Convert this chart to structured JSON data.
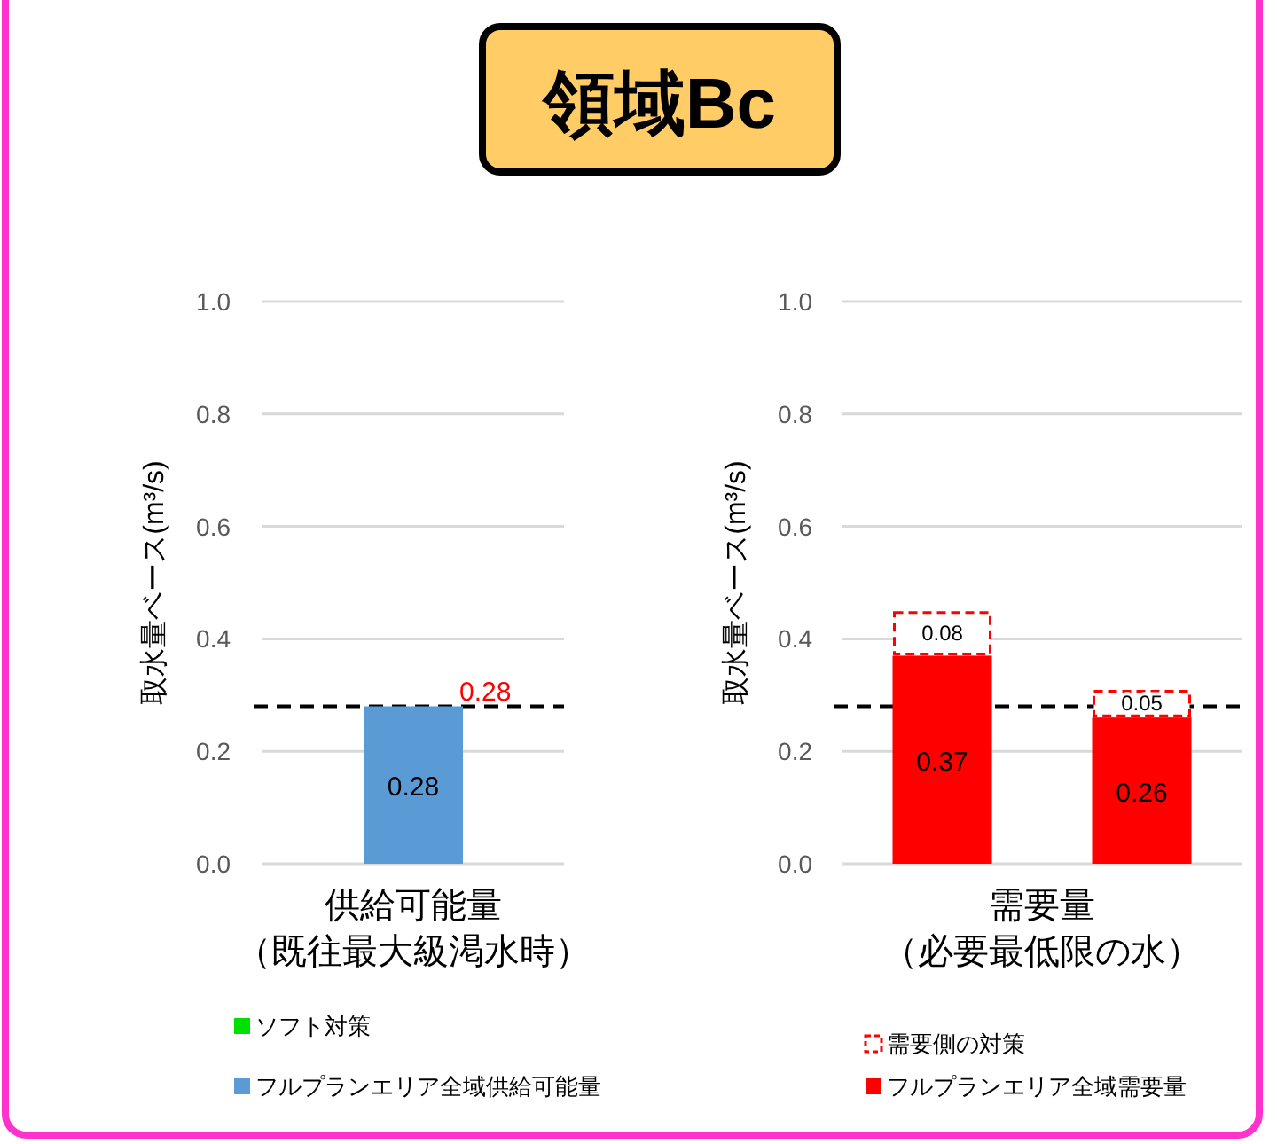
{
  "chart_data": [
    {
      "type": "bar",
      "title": "領域Bc",
      "categories": [
        null
      ],
      "xlabel": "供給可能量（既往最大級渇水時）",
      "ylabel": "取水量ベース(m³/s)",
      "stacked": true,
      "data_labels": true,
      "totals": [
        "0.28"
      ],
      "series": [
        {
          "name": "フルプランエリア全域供給可能量",
          "color": "#5b9bd5",
          "values": [
            0.28
          ]
        },
        {
          "name": "ソフト対策",
          "color": "#00e000",
          "values": [
            null
          ]
        }
      ],
      "ylim": [
        0,
        1
      ],
      "yticks": [
        {
          "value": 0,
          "label": "0.0"
        },
        {
          "value": 0.2,
          "label": "0.2"
        },
        {
          "value": 0.4,
          "label": "0.4"
        },
        {
          "value": 0.6,
          "label": "0.6"
        },
        {
          "value": 0.8,
          "label": "0.8"
        },
        {
          "value": 1,
          "label": "1.0"
        }
      ],
      "grid": "y",
      "legend": "bottom",
      "ref_lines": [
        {
          "axis": "y",
          "value": 0.28,
          "color": "#000000",
          "line_style": "dashed"
        }
      ]
    },
    {
      "type": "bar",
      "categories": [
        null,
        null
      ],
      "xlabel": "需要量（必要最低限の水）",
      "ylabel": "取水量ベース(m³/s)",
      "stacked": true,
      "data_labels": true,
      "series": [
        {
          "name": "フルプランエリア全域需要量",
          "color": "#ff0000",
          "values": [
            0.37,
            0.26
          ]
        },
        {
          "name": "需要側の対策",
          "color": "#ff0000",
          "line_style": "dashed",
          "values": [
            0.08,
            0.05
          ]
        }
      ],
      "ylim": [
        0,
        1
      ],
      "yticks": [
        {
          "value": 0,
          "label": "0.0"
        },
        {
          "value": 0.2,
          "label": "0.2"
        },
        {
          "value": 0.4,
          "label": "0.4"
        },
        {
          "value": 0.6,
          "label": "0.6"
        },
        {
          "value": 0.8,
          "label": "0.8"
        },
        {
          "value": 1,
          "label": "1.0"
        }
      ],
      "grid": "y",
      "legend": "bottom",
      "ref_lines": [
        {
          "axis": "y",
          "value": 0.28,
          "color": "#000000",
          "line_style": "dashed"
        }
      ]
    }
  ]
}
